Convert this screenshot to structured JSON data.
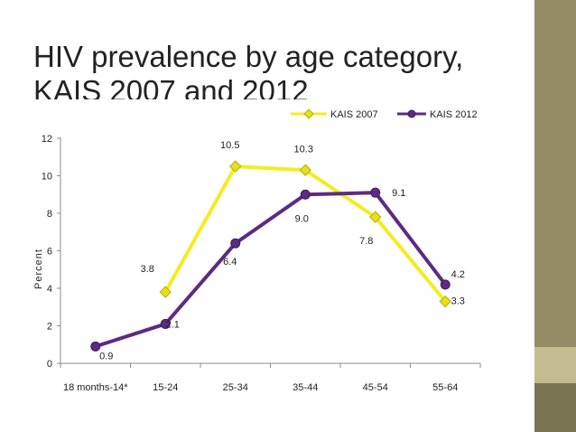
{
  "slide": {
    "title_line1": "HIV prevalence by age category,",
    "title_line2": "KAIS 2007 and 2012"
  },
  "colors": {
    "kais2007": "#f5ec1f",
    "kais2007_marker": "#e6df1a",
    "kais2012": "#5b2c82",
    "sidebar": "#948c66"
  },
  "chart_data": {
    "type": "line",
    "categories": [
      "18 months-14*",
      "15-24",
      "25-34",
      "35-44",
      "45-54",
      "55-64"
    ],
    "ylabel": "Percent",
    "xlabel": "",
    "ylim": [
      0,
      12
    ],
    "yticks": [
      0,
      2,
      4,
      6,
      8,
      10,
      12
    ],
    "grid": false,
    "legend_position": "top-right",
    "series": [
      {
        "name": "KAIS 2007",
        "values": [
          null,
          3.8,
          10.5,
          10.3,
          7.8,
          3.3
        ],
        "labels": [
          "",
          "3.8",
          "10.5",
          "10.3",
          "7.8",
          "3.3"
        ],
        "marker": "diamond"
      },
      {
        "name": "KAIS 2012",
        "values": [
          0.9,
          2.1,
          6.4,
          9.0,
          9.1,
          4.2
        ],
        "labels": [
          "0.9",
          "2.1",
          "6.4",
          "9.0",
          "9.1",
          "4.2"
        ],
        "marker": "circle"
      }
    ]
  }
}
